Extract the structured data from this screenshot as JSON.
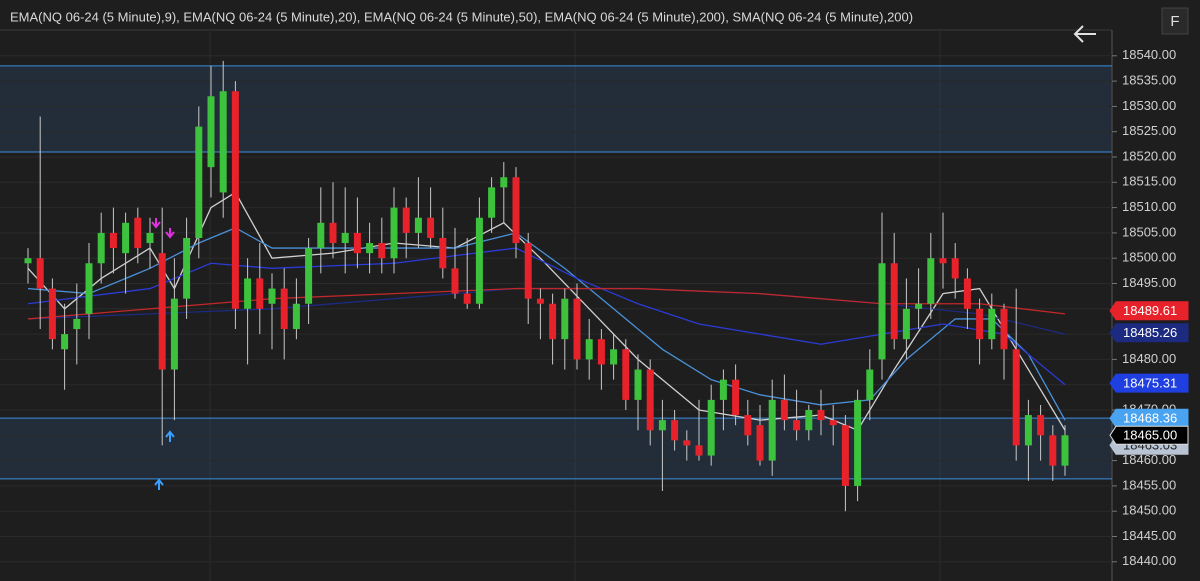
{
  "ui": {
    "button": "F"
  },
  "chart_data": {
    "type": "candlestick",
    "legend_text": "EMA(NQ 06-24 (5 Minute),9), EMA(NQ 06-24 (5 Minute),20), EMA(NQ 06-24 (5 Minute),50), EMA(NQ 06-24 (5 Minute),200), SMA(NQ 06-24 (5 Minute),200)",
    "up_color": "#3cc23c",
    "down_color": "#e8222a",
    "wick_color": "#c8c8c8",
    "open": [
      18499,
      18500,
      18494,
      18482,
      18486,
      18489,
      18499,
      18505,
      18501,
      18508,
      18503,
      18501,
      18478,
      18492,
      18504,
      18518,
      18513,
      18533,
      18490,
      18496,
      18491,
      18494,
      18486,
      18491,
      18502,
      18507,
      18503,
      18505,
      18501,
      18503,
      18500,
      18510,
      18505,
      18508,
      18504,
      18498,
      18493,
      18491,
      18508,
      18514,
      18516,
      18503,
      18492,
      18491,
      18484,
      18492,
      18480,
      18484,
      18479,
      18482,
      18472,
      18478,
      18466,
      18468,
      18464,
      18463,
      18461,
      18472,
      18476,
      18469,
      18467,
      18460,
      18472,
      18468,
      18466,
      18470,
      18468,
      18467,
      18455,
      18472,
      18480,
      18499,
      18484,
      18490,
      18491,
      18500,
      18500,
      18496,
      18490,
      18484,
      18490,
      18482,
      18463,
      18469,
      18465,
      18459
    ],
    "high": [
      18502,
      18528,
      18496,
      18491,
      18495,
      18503,
      18509,
      18510,
      18509,
      18510,
      18508,
      18510,
      18500,
      18508,
      18530,
      18538,
      18539,
      18535,
      18500,
      18503,
      18497,
      18498,
      18496,
      18504,
      18514,
      18515,
      18514,
      18512,
      18507,
      18508,
      18514,
      18512,
      18516,
      18514,
      18510,
      18506,
      18504,
      18512,
      18516,
      18519,
      18518,
      18505,
      18494,
      18493,
      18494,
      18495,
      18488,
      18486,
      18485,
      18484,
      18481,
      18480,
      18472,
      18470,
      18466,
      18472,
      18475,
      18478,
      18479,
      18472,
      18471,
      18476,
      18477,
      18474,
      18471,
      18474,
      18471,
      18469,
      18474,
      18482,
      18509,
      18505,
      18496,
      18498,
      18505,
      18509,
      18503,
      18498,
      18492,
      18493,
      18491,
      18494,
      18472,
      18471,
      18467,
      18467
    ],
    "low": [
      18495,
      18486,
      18482,
      18474,
      18479,
      18484,
      18495,
      18497,
      18493,
      18499,
      18498,
      18463,
      18468,
      18488,
      18500,
      18512,
      18508,
      18486,
      18479,
      18485,
      18482,
      18480,
      18484,
      18487,
      18497,
      18500,
      18497,
      18498,
      18497,
      18497,
      18497,
      18500,
      18502,
      18502,
      18496,
      18492,
      18490,
      18490,
      18505,
      18507,
      18500,
      18487,
      18484,
      18479,
      18478,
      18478,
      18476,
      18474,
      18476,
      18470,
      18466,
      18463,
      18454,
      18462,
      18460,
      18460,
      18459,
      18466,
      18467,
      18463,
      18459,
      18457,
      18466,
      18464,
      18464,
      18465,
      18463,
      18450,
      18452,
      18468,
      18476,
      18482,
      18480,
      18486,
      18488,
      18494,
      18492,
      18486,
      18479,
      18482,
      18476,
      18460,
      18456,
      18460,
      18456,
      18457
    ],
    "close": [
      18500,
      18494,
      18484,
      18485,
      18488,
      18499,
      18505,
      18502,
      18507,
      18502,
      18505,
      18478,
      18492,
      18504,
      18526,
      18532,
      18533,
      18490,
      18496,
      18490,
      18494,
      18486,
      18491,
      18502,
      18507,
      18503,
      18505,
      18501,
      18503,
      18500,
      18510,
      18505,
      18508,
      18504,
      18498,
      18493,
      18491,
      18508,
      18514,
      18516,
      18503,
      18492,
      18491,
      18484,
      18492,
      18480,
      18484,
      18479,
      18482,
      18472,
      18478,
      18466,
      18468,
      18464,
      18463,
      18461,
      18472,
      18476,
      18469,
      18465,
      18460,
      18472,
      18468,
      18466,
      18470,
      18468,
      18467,
      18455,
      18472,
      18478,
      18499,
      18484,
      18490,
      18491,
      18500,
      18499,
      18496,
      18490,
      18484,
      18490,
      18482,
      18463,
      18469,
      18465,
      18459,
      18465
    ],
    "lines": [
      {
        "color": "#d0d0d0",
        "x": [
          0,
          3,
          6,
          10,
          12,
          15,
          17,
          20,
          25,
          30,
          35,
          39,
          42,
          46,
          50,
          55,
          60,
          65,
          68,
          71,
          75,
          78,
          81,
          84,
          85
        ],
        "values": [
          18498,
          18490,
          18496,
          18502,
          18494,
          18510,
          18513,
          18500,
          18501,
          18503,
          18502,
          18507,
          18500,
          18490,
          18480,
          18470,
          18468,
          18469,
          18466,
          18478,
          18493,
          18494,
          18482,
          18470,
          18466
        ]
      },
      {
        "color": "#4a90d9",
        "x": [
          0,
          5,
          10,
          14,
          17,
          20,
          25,
          30,
          35,
          40,
          44,
          48,
          52,
          56,
          60,
          65,
          69,
          72,
          76,
          79,
          82,
          85
        ],
        "values": [
          18494,
          18493,
          18498,
          18503,
          18506,
          18502,
          18502,
          18502,
          18502,
          18505,
          18498,
          18490,
          18482,
          18476,
          18473,
          18471,
          18472,
          18480,
          18488,
          18488,
          18481,
          18468
        ]
      },
      {
        "color": "#2a3bd6",
        "x": [
          0,
          10,
          15,
          20,
          30,
          40,
          45,
          50,
          55,
          60,
          65,
          70,
          75,
          80,
          85
        ],
        "values": [
          18491,
          18494,
          18499,
          18498,
          18499,
          18502,
          18496,
          18491,
          18487,
          18485,
          18483,
          18485,
          18487,
          18485,
          18475
        ]
      },
      {
        "color": "#1c2a80",
        "x": [
          0,
          10,
          20,
          30,
          40,
          50,
          60,
          70,
          78,
          85
        ],
        "values": [
          18488,
          18489,
          18490,
          18492,
          18494,
          18494,
          18493,
          18491,
          18489,
          18485
        ]
      },
      {
        "color": "#c0282a",
        "x": [
          0,
          10,
          20,
          30,
          40,
          50,
          60,
          70,
          78,
          85
        ],
        "values": [
          18488,
          18490,
          18492,
          18493,
          18494,
          18494,
          18493,
          18491,
          18491,
          18489
        ]
      }
    ],
    "zones": [
      {
        "top": 18538,
        "bottom": 18521
      },
      {
        "top": 18468.4,
        "bottom": 18456.4
      }
    ],
    "price_labels": [
      {
        "value": 18463.03,
        "label": "18463.03",
        "color": "#b8c4d4"
      },
      {
        "value": 18489.61,
        "label": "18489.61",
        "color": "#e8222a"
      },
      {
        "value": 18485.26,
        "label": "18485.26",
        "color": "#1c2a80"
      },
      {
        "value": 18475.31,
        "label": "18475.31",
        "color": "#1f3fe0"
      },
      {
        "value": 18468.36,
        "label": "18468.36",
        "color": "#4aa3f0"
      },
      {
        "value": 18465.0,
        "label": "18465.00",
        "color": "#000000"
      }
    ],
    "ylim": [
      18436.8,
      18545.1
    ],
    "yticks": [
      {
        "value": 18540,
        "label": "18540.00"
      },
      {
        "value": 18535,
        "label": "18535.00"
      },
      {
        "value": 18530,
        "label": "18530.00"
      },
      {
        "value": 18525,
        "label": "18525.00"
      },
      {
        "value": 18520,
        "label": "18520.00"
      },
      {
        "value": 18515,
        "label": "18515.00"
      },
      {
        "value": 18510,
        "label": "18510.00"
      },
      {
        "value": 18505,
        "label": "18505.00"
      },
      {
        "value": 18500,
        "label": "18500.00"
      },
      {
        "value": 18495,
        "label": "18495.00"
      },
      {
        "value": 18490,
        "label": "18490.00"
      },
      {
        "value": 18485,
        "label": "18485.00"
      },
      {
        "value": 18480,
        "label": "18480.00"
      },
      {
        "value": 18475,
        "label": "18475.00"
      },
      {
        "value": 18470,
        "label": "18470.00"
      },
      {
        "value": 18465,
        "label": "18465.00"
      },
      {
        "value": 18460,
        "label": "18460.00"
      },
      {
        "value": 18455,
        "label": "18455.00"
      },
      {
        "value": 18450,
        "label": "18450.00"
      },
      {
        "value": 18445,
        "label": "18445.00"
      },
      {
        "value": 18440,
        "label": "18440.00"
      }
    ],
    "grid": true
  }
}
